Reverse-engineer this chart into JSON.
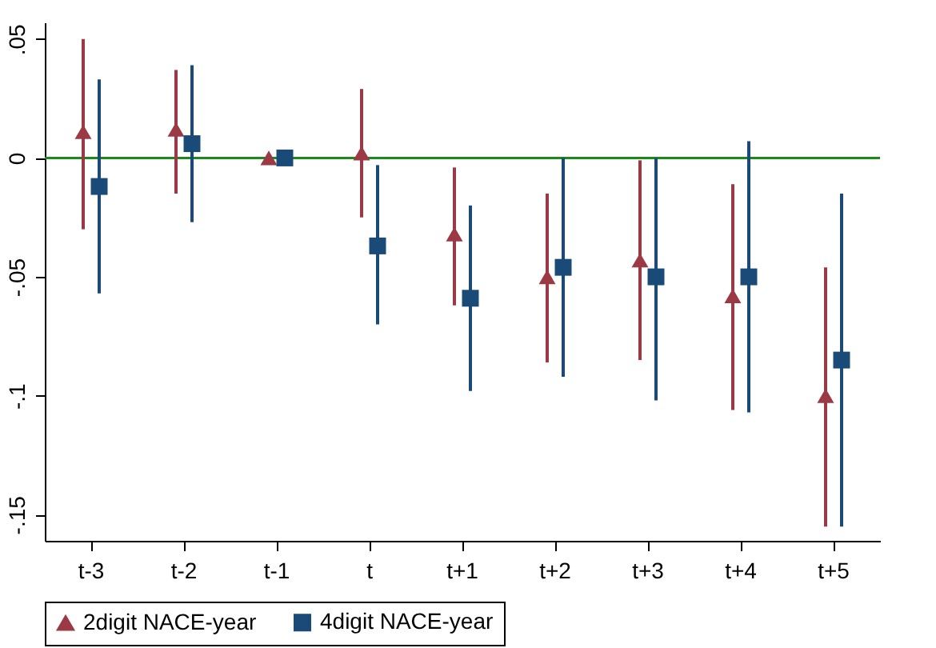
{
  "chart_data": {
    "type": "scatter",
    "categories": [
      "t-3",
      "t-2",
      "t-1",
      "t",
      "t+1",
      "t+2",
      "t+3",
      "t+4",
      "t+5"
    ],
    "series": [
      {
        "name": "2digit NACE-year",
        "color": "#9b3a45",
        "marker": "triangle",
        "values": [
          0.011,
          0.012,
          0,
          0.002,
          -0.032,
          -0.05,
          -0.043,
          -0.058,
          -0.1
        ],
        "errors": [
          [
            -0.03,
            0.05
          ],
          [
            -0.015,
            0.037
          ],
          null,
          [
            -0.025,
            0.029
          ],
          [
            -0.062,
            -0.004
          ],
          [
            -0.086,
            -0.015
          ],
          [
            -0.085,
            -0.001
          ],
          [
            -0.106,
            -0.011
          ],
          [
            -0.155,
            -0.046
          ]
        ]
      },
      {
        "name": "4digit NACE-year",
        "color": "#1a4a78",
        "marker": "square",
        "values": [
          -0.012,
          0.006,
          0,
          -0.037,
          -0.059,
          -0.046,
          -0.05,
          -0.05,
          -0.085
        ],
        "errors": [
          [
            -0.057,
            0.033
          ],
          [
            -0.027,
            0.039
          ],
          null,
          [
            -0.07,
            -0.003
          ],
          [
            -0.098,
            -0.02
          ],
          [
            -0.092,
            0
          ],
          [
            -0.102,
            0
          ],
          [
            -0.107,
            0.007
          ],
          [
            -0.155,
            -0.015
          ]
        ]
      }
    ],
    "ylim": [
      -0.161,
      0.057
    ],
    "yticks": [
      {
        "value": 0.05,
        "label": ".05"
      },
      {
        "value": 0,
        "label": "0"
      },
      {
        "value": -0.05,
        "label": "-.05"
      },
      {
        "value": -0.1,
        "label": "-.1"
      },
      {
        "value": -0.15,
        "label": "-.15"
      }
    ],
    "ref_lines": [
      {
        "axis": "y",
        "value": 0,
        "color": "#1a8a1a"
      }
    ],
    "grid": false,
    "legend": "bottom"
  }
}
